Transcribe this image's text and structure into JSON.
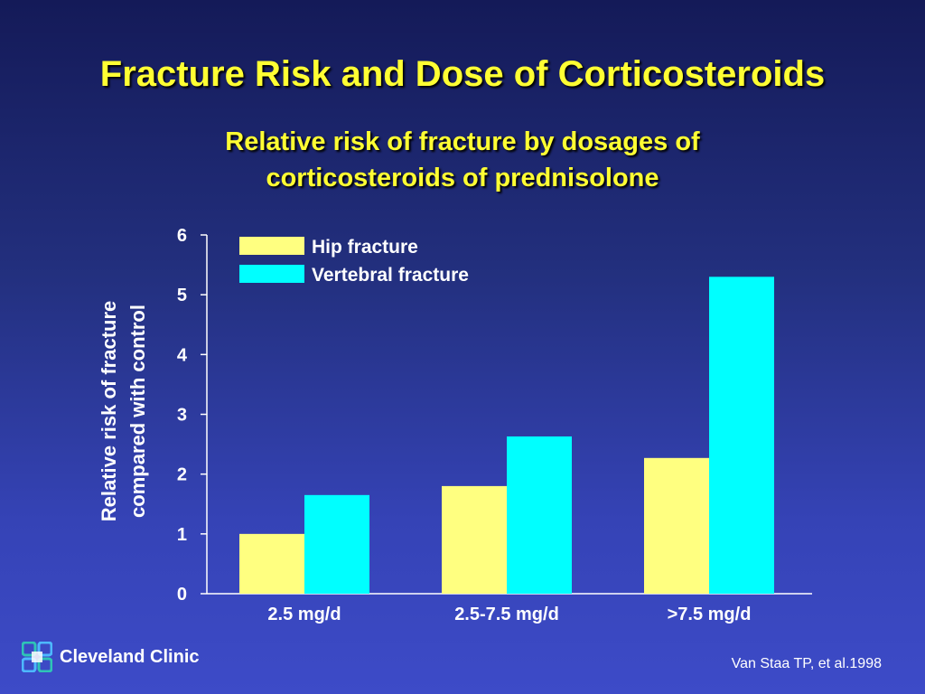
{
  "slide": {
    "title": "Fracture Risk and Dose of Corticosteroids",
    "subtitle_line1": "Relative risk of fracture by dosages of",
    "subtitle_line2": "corticosteroids of prednisolone",
    "logo_text": "Cleveland Clinic",
    "citation": "Van Staa TP, et al.1998"
  },
  "colors": {
    "title": "#ffff33",
    "hip": "#ffff80",
    "vertebral": "#00ffff",
    "axis": "#ffffff"
  },
  "chart_data": {
    "type": "bar",
    "categories": [
      "2.5 mg/d",
      "2.5-7.5 mg/d",
      ">7.5 mg/d"
    ],
    "series": [
      {
        "name": "Hip fracture",
        "values": [
          1.0,
          1.8,
          2.27
        ],
        "color": "#ffff80"
      },
      {
        "name": "Vertebral fracture",
        "values": [
          1.65,
          2.63,
          5.3
        ],
        "color": "#00ffff"
      }
    ],
    "ylabel_line1": "Relative risk of fracture",
    "ylabel_line2": "compared with control",
    "ylim": [
      0,
      6
    ],
    "yticks": [
      0,
      1,
      2,
      3,
      4,
      5,
      6
    ],
    "legend_position": "top-left",
    "grid": false
  }
}
